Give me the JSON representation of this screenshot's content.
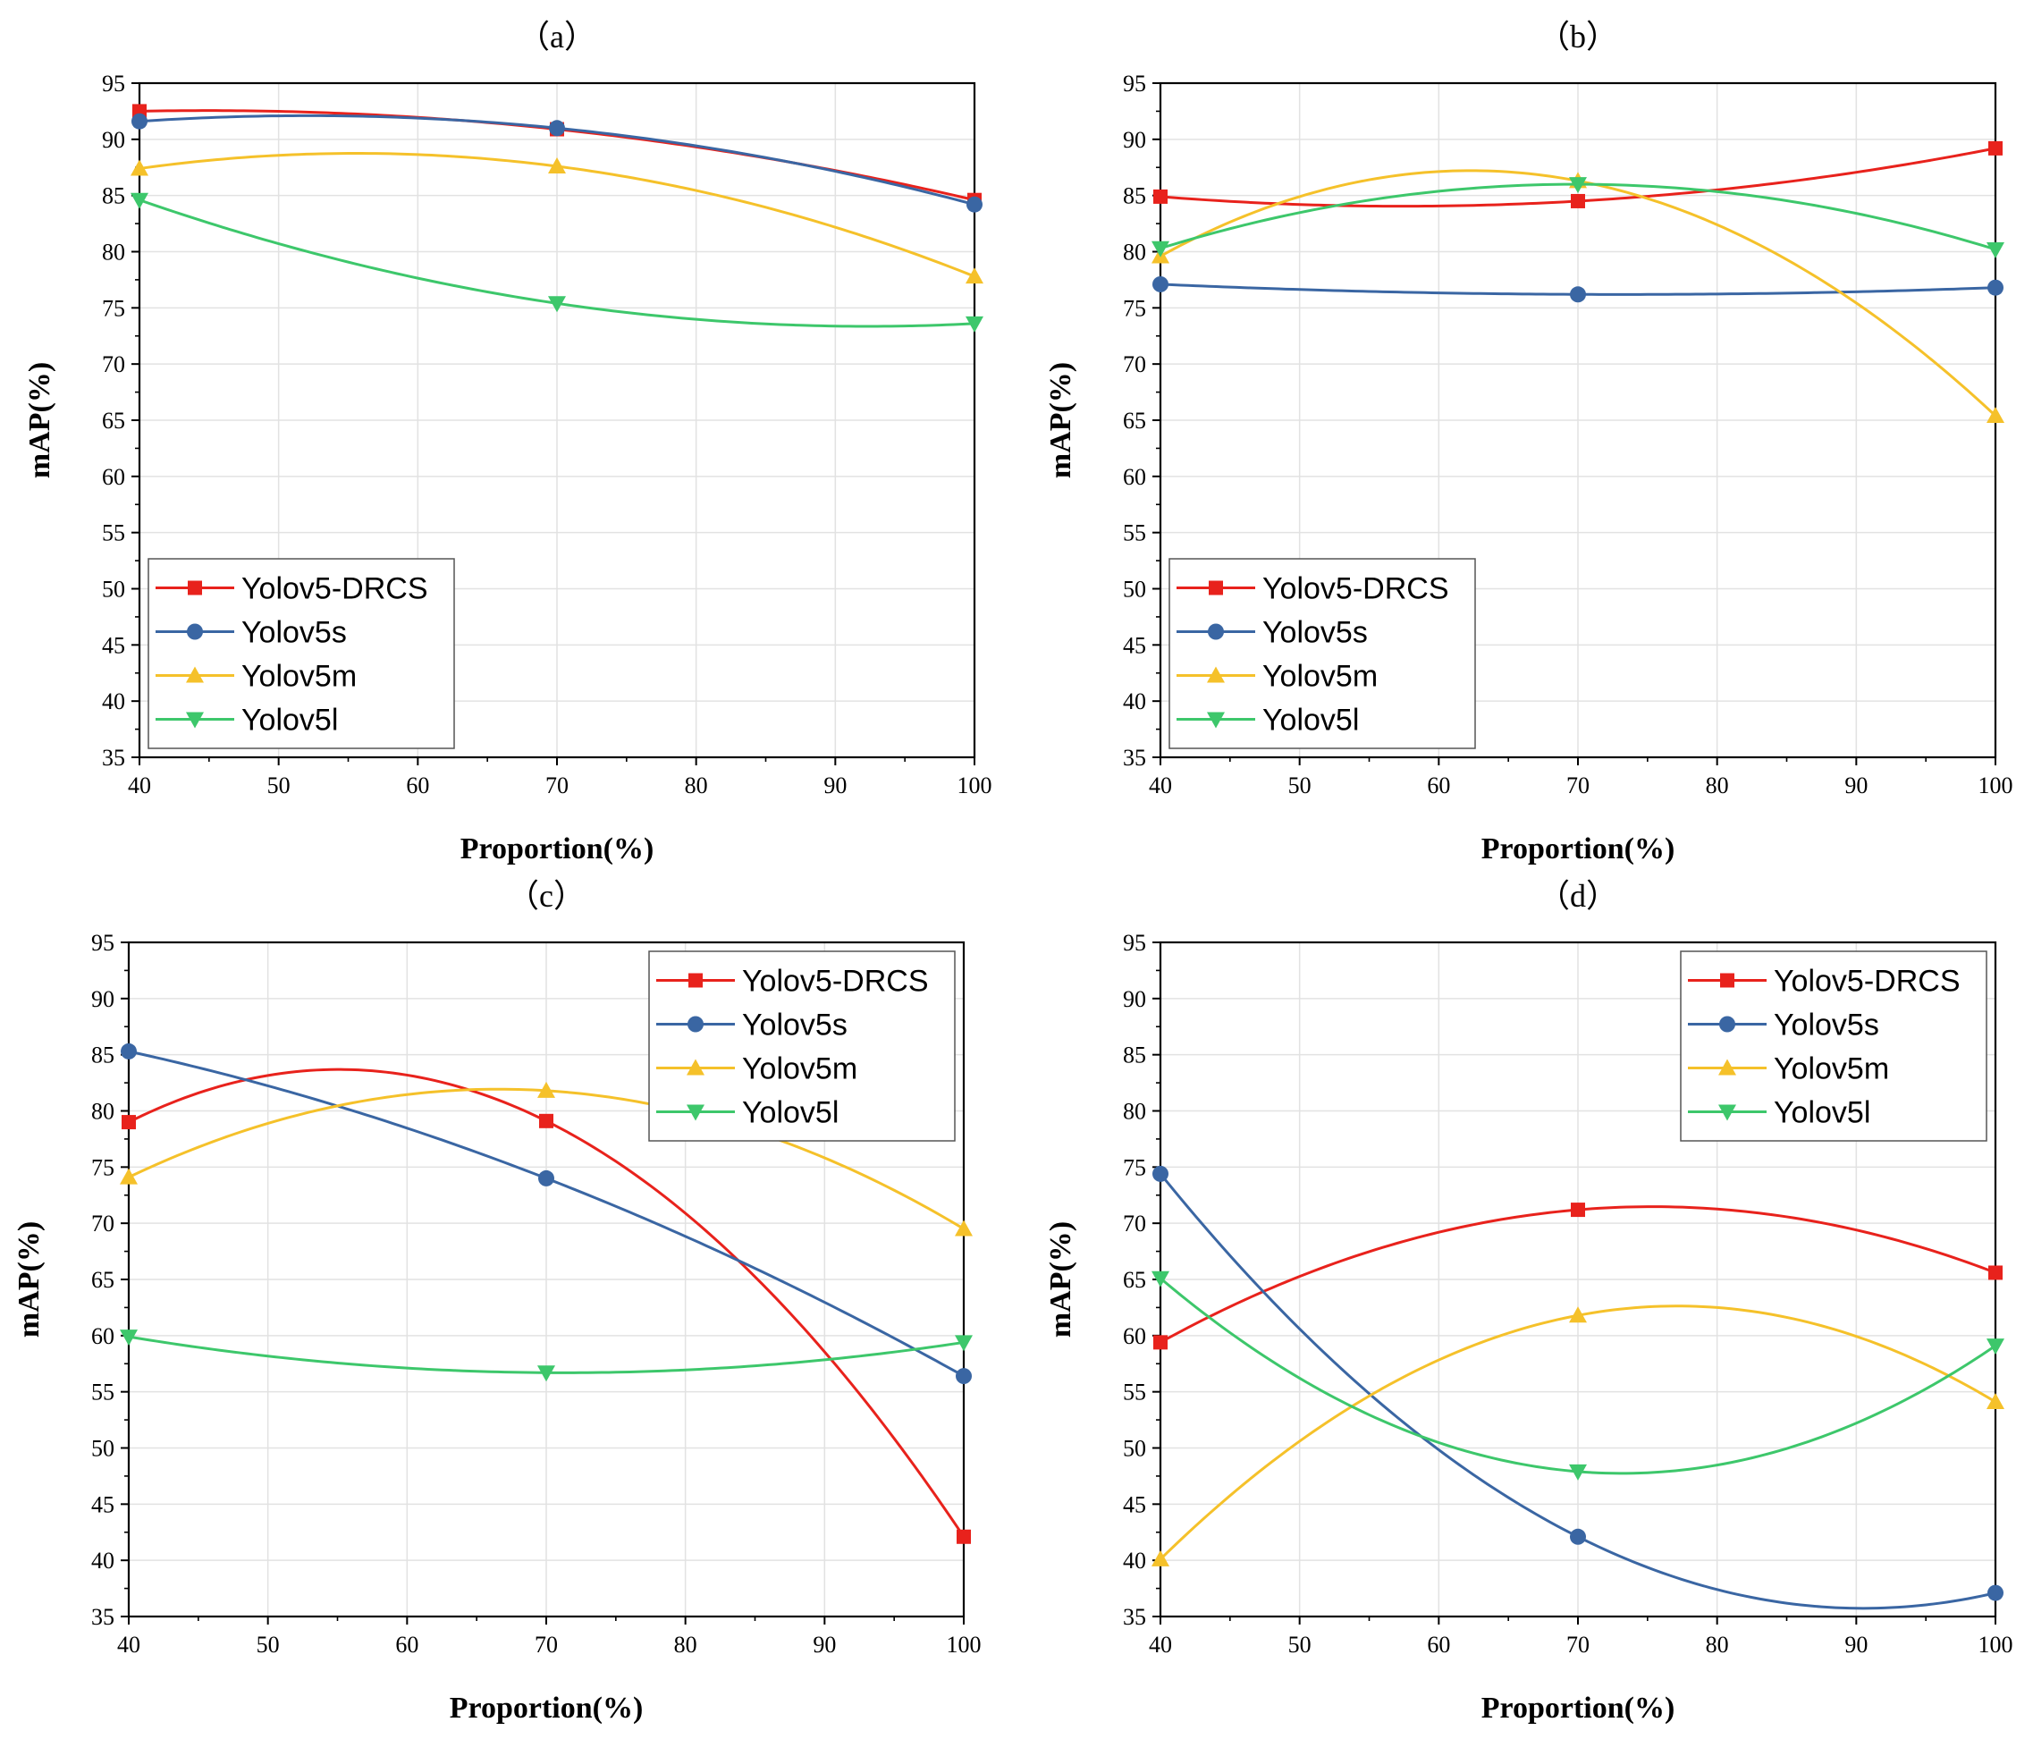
{
  "figure": {
    "panels_common": {
      "xlabel": "Proportion(%)",
      "ylabel": "mAP(%)"
    }
  },
  "chart_data": [
    {
      "type": "line",
      "title": "（a）",
      "xlabel": "Proportion(%)",
      "ylabel": "mAP(%)",
      "xlim": [
        40,
        100
      ],
      "ylim": [
        35,
        95
      ],
      "x_ticks": [
        "40",
        "50",
        "60",
        "70",
        "80",
        "90",
        "100"
      ],
      "y_ticks": [
        "35",
        "40",
        "45",
        "50",
        "55",
        "60",
        "65",
        "70",
        "75",
        "80",
        "85",
        "90",
        "95"
      ],
      "legend_position": "bottom-left",
      "x": [
        40,
        70,
        100
      ],
      "series": [
        {
          "name": "Yolov5-DRCS",
          "values": [
            92.5,
            90.9,
            84.6
          ],
          "color": "#e8221c",
          "marker": "square"
        },
        {
          "name": "Yolov5s",
          "values": [
            91.6,
            91.0,
            84.2
          ],
          "color": "#3a66a3",
          "marker": "circle"
        },
        {
          "name": "Yolov5m",
          "values": [
            87.4,
            87.6,
            77.8
          ],
          "color": "#f5c12a",
          "marker": "triangle-up"
        },
        {
          "name": "Yolov5l",
          "values": [
            84.6,
            75.4,
            73.6
          ],
          "color": "#3dc76b",
          "marker": "triangle-down"
        }
      ]
    },
    {
      "type": "line",
      "title": "（b）",
      "xlabel": "Proportion(%)",
      "ylabel": "mAP(%)",
      "xlim": [
        40,
        100
      ],
      "ylim": [
        35,
        95
      ],
      "x_ticks": [
        "40",
        "50",
        "60",
        "70",
        "80",
        "90",
        "100"
      ],
      "y_ticks": [
        "35",
        "40",
        "45",
        "50",
        "55",
        "60",
        "65",
        "70",
        "75",
        "80",
        "85",
        "90",
        "95"
      ],
      "legend_position": "bottom-left",
      "x": [
        40,
        70,
        100
      ],
      "series": [
        {
          "name": "Yolov5-DRCS",
          "values": [
            84.9,
            84.5,
            89.2
          ],
          "color": "#e8221c",
          "marker": "square"
        },
        {
          "name": "Yolov5s",
          "values": [
            77.1,
            76.2,
            76.8
          ],
          "color": "#3a66a3",
          "marker": "circle"
        },
        {
          "name": "Yolov5m",
          "values": [
            79.6,
            86.3,
            65.4
          ],
          "color": "#f5c12a",
          "marker": "triangle-up"
        },
        {
          "name": "Yolov5l",
          "values": [
            80.3,
            86.0,
            80.2
          ],
          "color": "#3dc76b",
          "marker": "triangle-down"
        }
      ]
    },
    {
      "type": "line",
      "title": "（c）",
      "xlabel": "Proportion(%)",
      "ylabel": "mAP(%)",
      "xlim": [
        40,
        100
      ],
      "ylim": [
        35,
        95
      ],
      "x_ticks": [
        "40",
        "50",
        "60",
        "70",
        "80",
        "90",
        "100"
      ],
      "y_ticks": [
        "35",
        "40",
        "45",
        "50",
        "55",
        "60",
        "65",
        "70",
        "75",
        "80",
        "85",
        "90",
        "95"
      ],
      "legend_position": "top-right",
      "x": [
        40,
        70,
        100
      ],
      "series": [
        {
          "name": "Yolov5-DRCS",
          "values": [
            79.0,
            79.1,
            42.1
          ],
          "color": "#e8221c",
          "marker": "square"
        },
        {
          "name": "Yolov5s",
          "values": [
            85.3,
            74.0,
            56.4
          ],
          "color": "#3a66a3",
          "marker": "circle"
        },
        {
          "name": "Yolov5m",
          "values": [
            74.1,
            81.8,
            69.5
          ],
          "color": "#f5c12a",
          "marker": "triangle-up"
        },
        {
          "name": "Yolov5l",
          "values": [
            59.9,
            56.7,
            59.4
          ],
          "color": "#3dc76b",
          "marker": "triangle-down"
        }
      ]
    },
    {
      "type": "line",
      "title": "（d）",
      "xlabel": "Proportion(%)",
      "ylabel": "mAP(%)",
      "xlim": [
        40,
        100
      ],
      "ylim": [
        35,
        95
      ],
      "x_ticks": [
        "40",
        "50",
        "60",
        "70",
        "80",
        "90",
        "100"
      ],
      "y_ticks": [
        "35",
        "40",
        "45",
        "50",
        "55",
        "60",
        "65",
        "70",
        "75",
        "80",
        "85",
        "90",
        "95"
      ],
      "legend_position": "top-right",
      "x": [
        40,
        70,
        100
      ],
      "series": [
        {
          "name": "Yolov5-DRCS",
          "values": [
            59.4,
            71.2,
            65.6
          ],
          "color": "#e8221c",
          "marker": "square"
        },
        {
          "name": "Yolov5s",
          "values": [
            74.4,
            42.1,
            37.1
          ],
          "color": "#3a66a3",
          "marker": "circle"
        },
        {
          "name": "Yolov5m",
          "values": [
            40.1,
            61.8,
            54.1
          ],
          "color": "#f5c12a",
          "marker": "triangle-up"
        },
        {
          "name": "Yolov5l",
          "values": [
            65.1,
            47.9,
            59.1
          ],
          "color": "#3dc76b",
          "marker": "triangle-down"
        }
      ]
    }
  ]
}
